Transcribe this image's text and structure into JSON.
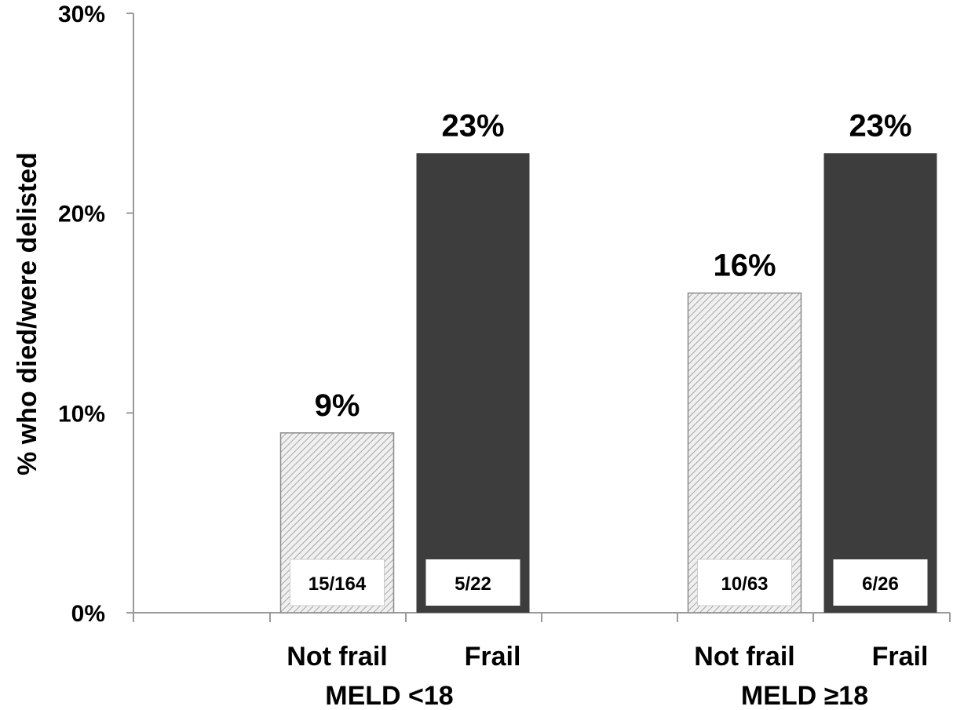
{
  "chart_data": {
    "type": "bar",
    "title": "",
    "ylabel": "%  who died/were delisted",
    "ylim": [
      0,
      30
    ],
    "yticks": [
      "0%",
      "10%",
      "20%",
      "30%"
    ],
    "grid": false,
    "groups": [
      {
        "label": "MELD <18",
        "bars": [
          {
            "category": "Not frail",
            "value": 9,
            "value_label": "9%",
            "count_label": "15/164",
            "style": "hatched"
          },
          {
            "category": "Frail",
            "value": 23,
            "value_label": "23%",
            "count_label": "5/22",
            "style": "solid"
          }
        ]
      },
      {
        "label": "MELD ≥18",
        "bars": [
          {
            "category": "Not frail",
            "value": 16,
            "value_label": "16%",
            "count_label": "10/63",
            "style": "hatched"
          },
          {
            "category": "Frail",
            "value": 23,
            "value_label": "23%",
            "count_label": "6/26",
            "style": "solid"
          }
        ]
      }
    ],
    "colors": {
      "frail": "#3d3d3d",
      "not_frail": "#f0f0f0",
      "hatch": "#a6a6a6",
      "axis": "#9a9a9a"
    }
  }
}
